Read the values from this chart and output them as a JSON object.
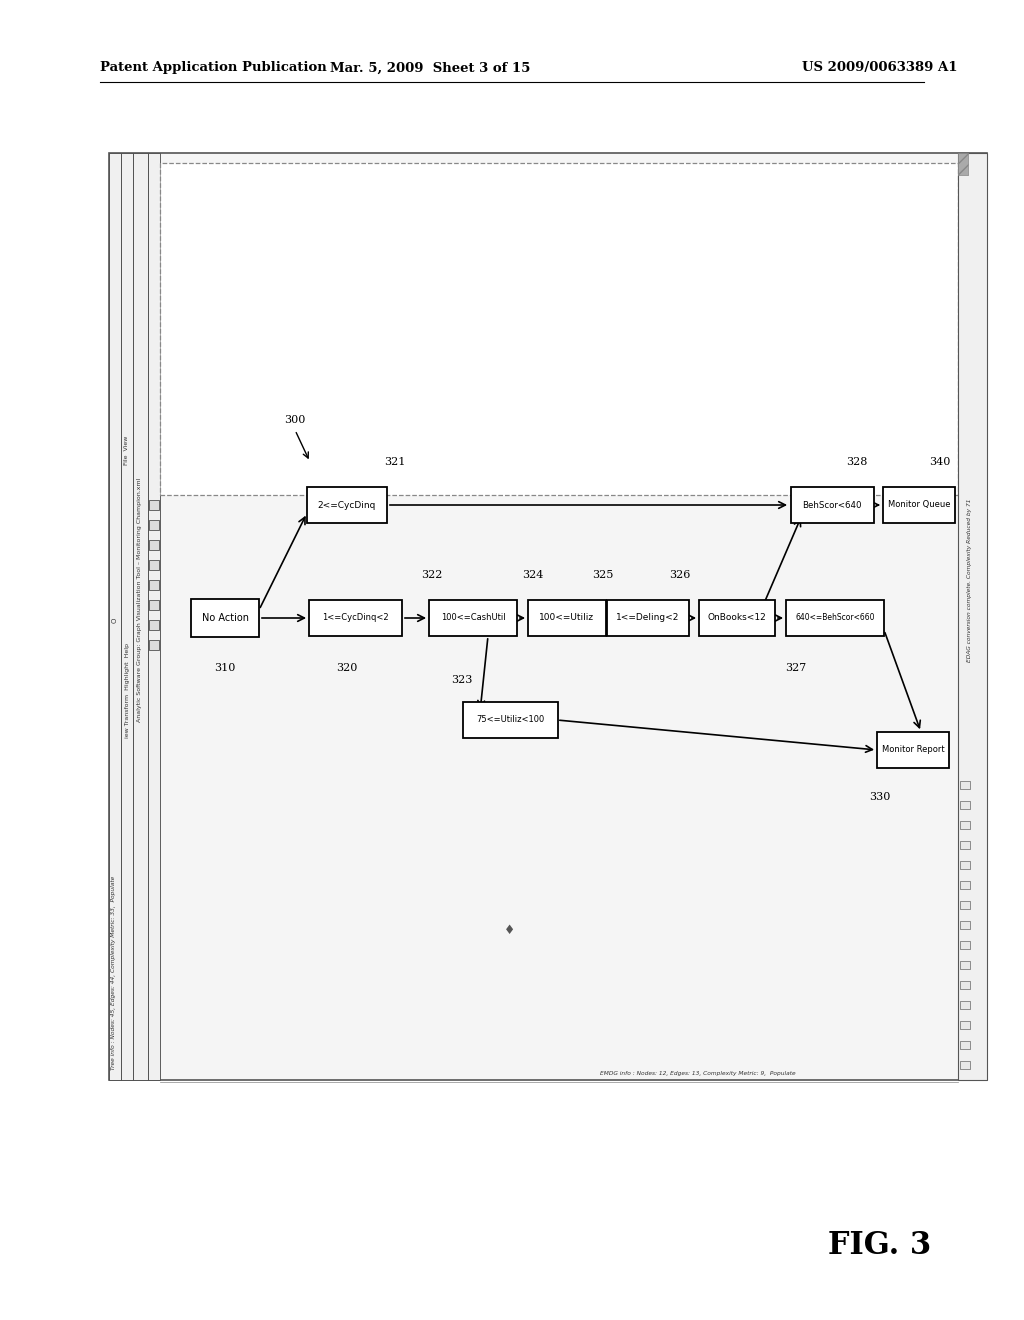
{
  "page_title_left": "Patent Application Publication",
  "page_title_mid": "Mar. 5, 2009  Sheet 3 of 15",
  "page_title_right": "US 2009/0063389 A1",
  "fig_label": "FIG. 3",
  "tree_info": "Tree info : Nodes: 45, Edges: 44, Complexity Metric: 33,  Populate",
  "emdg_info": "EMDG info : Nodes: 12, Edges: 13, Complexity Metric: 9,  Populate",
  "edag_text": "EDAG conversion complete. Complexity Reduced by 71",
  "header_title": "Analytic Software Group: Graph Visualization Tool – Monitoring Champion.xml",
  "menu_line1": "iew Transform  Highlight  Help",
  "circles": "O",
  "background_color": "#ffffff"
}
